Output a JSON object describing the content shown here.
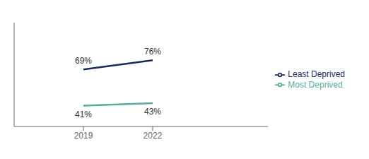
{
  "chart_data": {
    "type": "line",
    "x": [
      2019,
      2022
    ],
    "series": [
      {
        "name": "Least Deprived",
        "color": "#1a2c5b",
        "values": [
          69,
          76
        ],
        "value_labels": [
          "69%",
          "76%"
        ]
      },
      {
        "name": "Most Deprived",
        "color": "#5aada0",
        "values": [
          41,
          43
        ],
        "value_labels": [
          "41%",
          "43%"
        ]
      }
    ],
    "xlim": [
      2016,
      2027
    ],
    "xticks": [
      2019,
      2022
    ],
    "ylim": [
      25,
      105
    ],
    "tick_labels": "x",
    "data_labels": true,
    "legend": "right"
  }
}
